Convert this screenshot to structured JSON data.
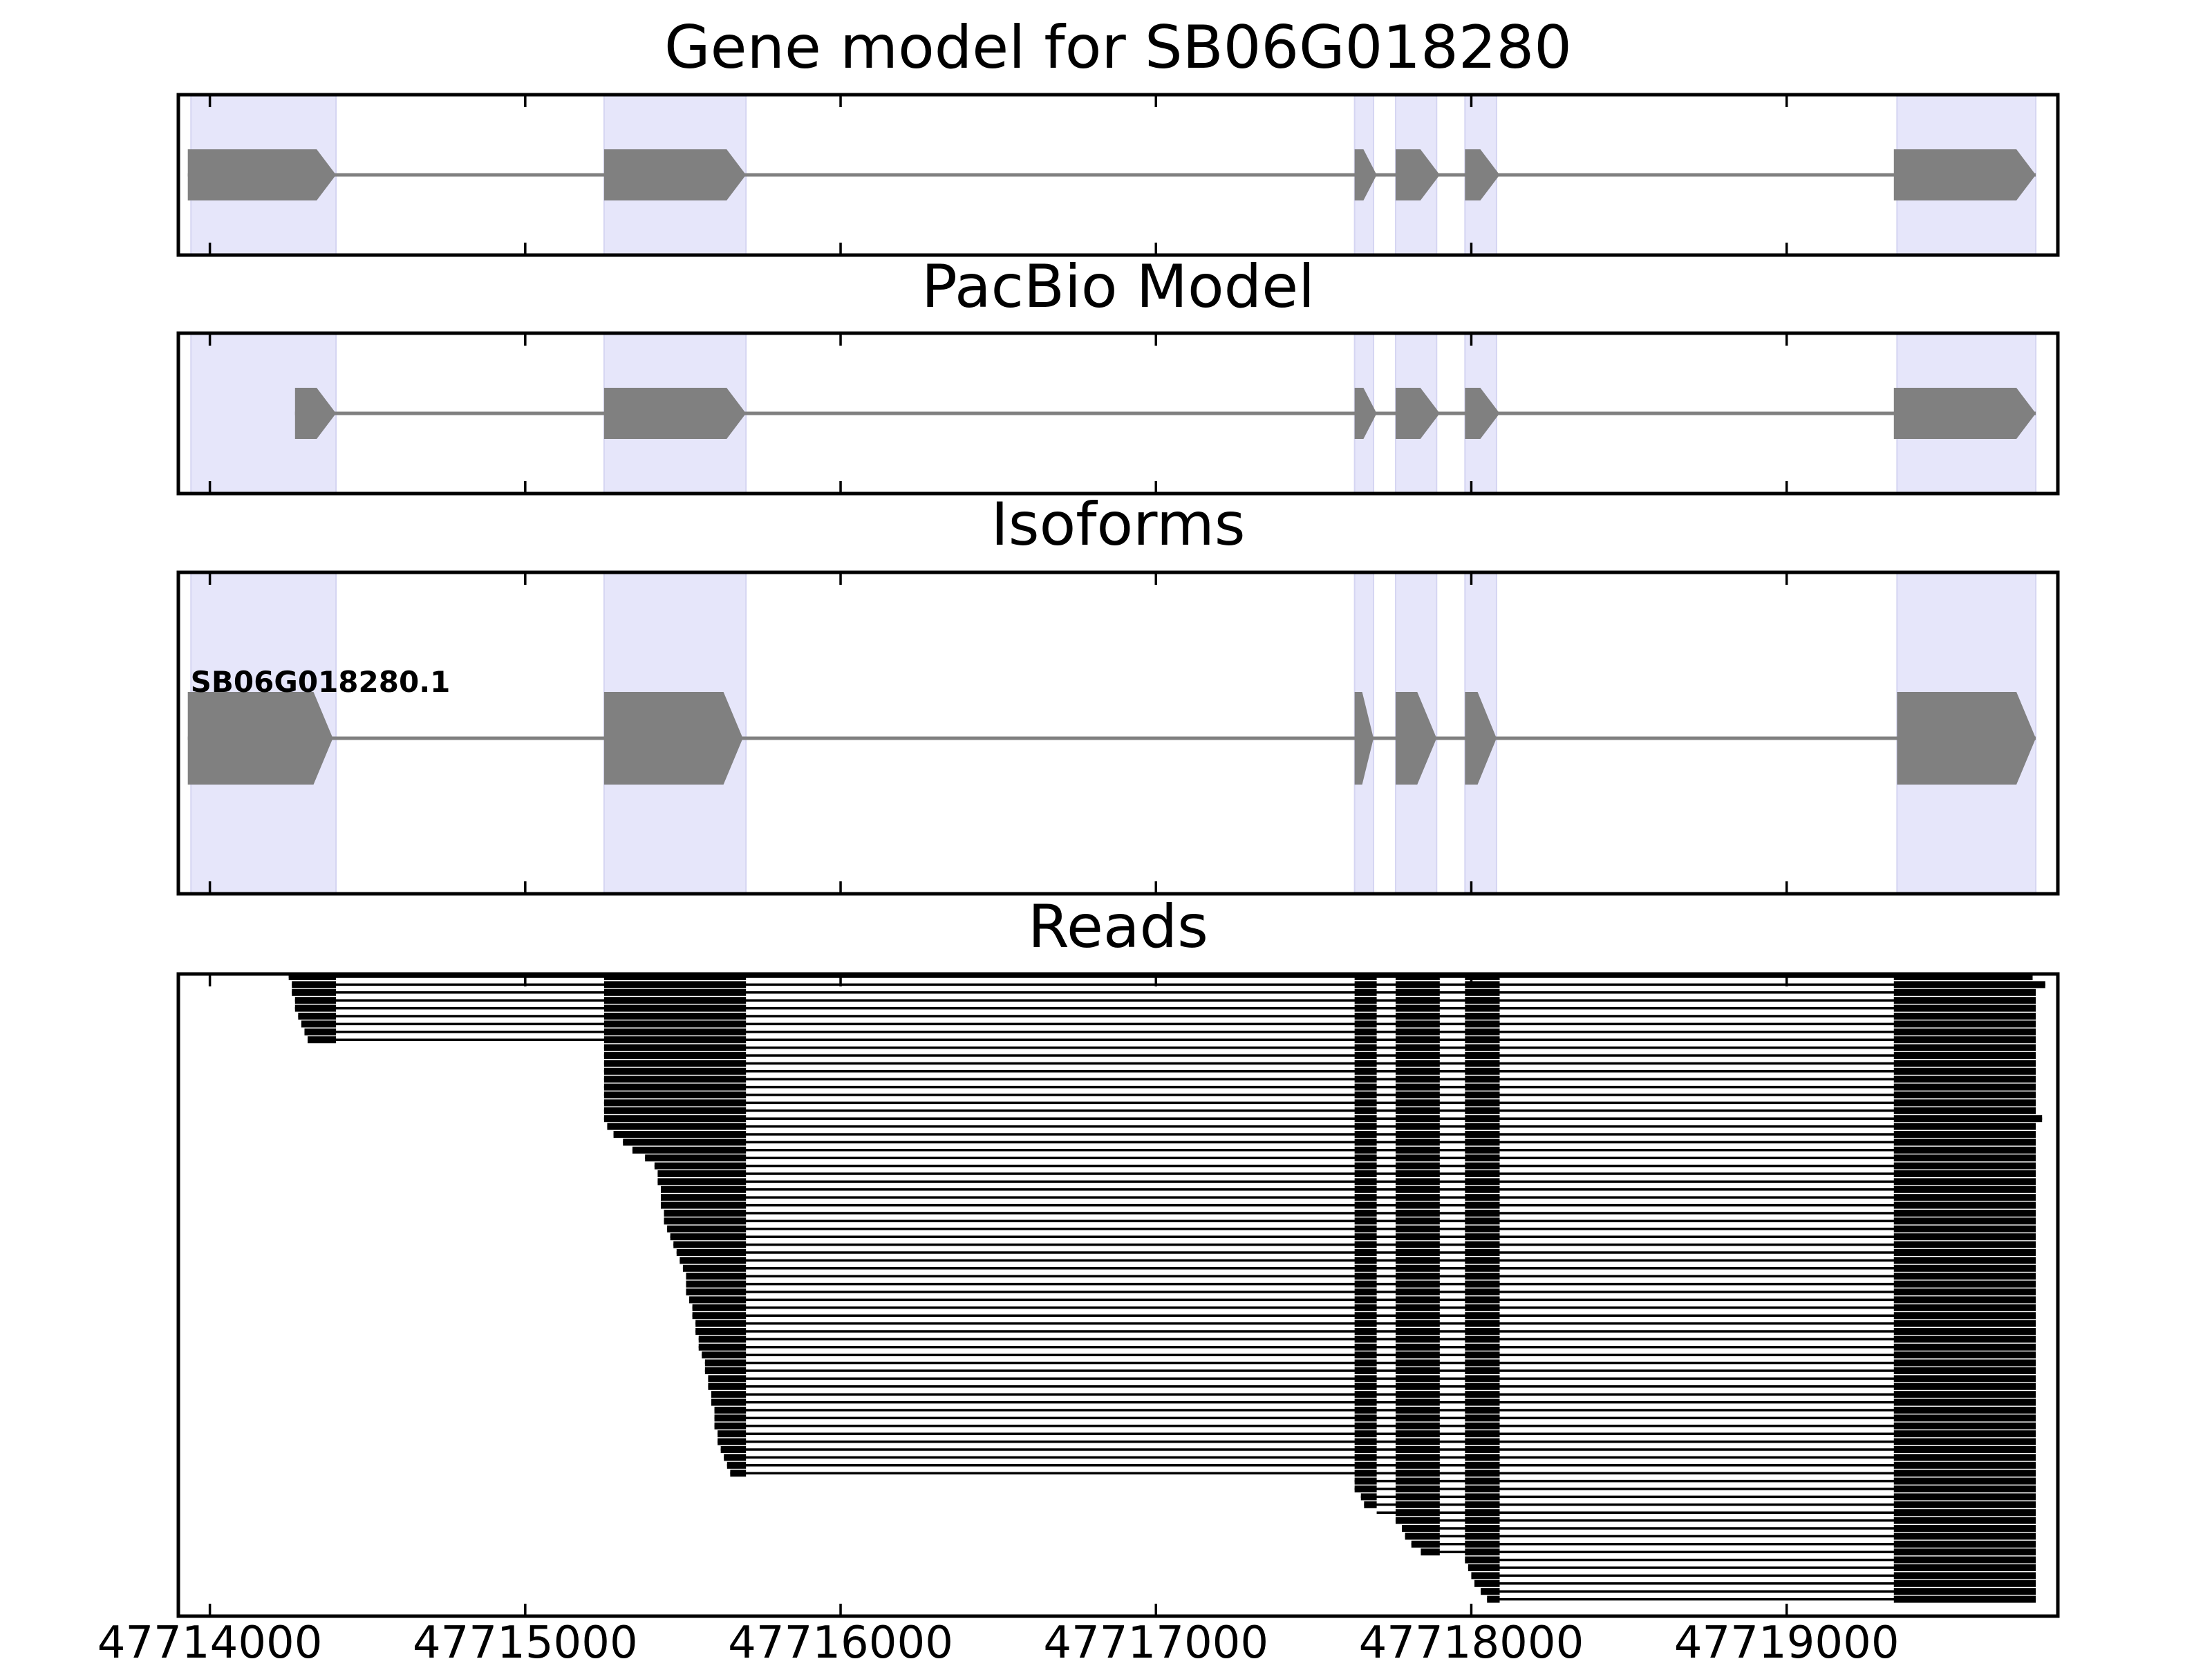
{
  "figure": {
    "x_axis": {
      "range": [
        47713900,
        47719860
      ],
      "ticks": [
        47714000,
        47715000,
        47716000,
        47717000,
        47718000,
        47719000
      ],
      "tick_labels": [
        "47714000",
        "47715000",
        "47716000",
        "47717000",
        "47718000",
        "47719000"
      ]
    },
    "colors": {
      "exon_shading": "#e6e6fa",
      "exon_shading_edge": "#d5d5f2",
      "gene_feature": "#808080",
      "read": "#000000"
    }
  },
  "chart_data": [
    {
      "type": "gene-model",
      "title": "Gene model for SB06G018280",
      "strand": "+",
      "exons": [
        [
          47713930,
          47714400
        ],
        [
          47715250,
          47715700
        ],
        [
          47717630,
          47717700
        ],
        [
          47717760,
          47717900
        ],
        [
          47717980,
          47718090
        ],
        [
          47719340,
          47719790
        ]
      ],
      "shaded_regions": [
        [
          47713940,
          47714400
        ],
        [
          47715250,
          47715700
        ],
        [
          47717630,
          47717690
        ],
        [
          47717760,
          47717890
        ],
        [
          47717980,
          47718080
        ],
        [
          47719350,
          47719790
        ]
      ]
    },
    {
      "type": "gene-model",
      "title": "PacBio Model",
      "strand": "+",
      "exons": [
        [
          47714270,
          47714400
        ],
        [
          47715250,
          47715700
        ],
        [
          47717630,
          47717700
        ],
        [
          47717760,
          47717900
        ],
        [
          47717980,
          47718090
        ],
        [
          47719340,
          47719790
        ]
      ],
      "shaded_regions": [
        [
          47713940,
          47714400
        ],
        [
          47715250,
          47715700
        ],
        [
          47717630,
          47717690
        ],
        [
          47717760,
          47717890
        ],
        [
          47717980,
          47718080
        ],
        [
          47719350,
          47719790
        ]
      ]
    },
    {
      "type": "gene-model",
      "title": "Isoforms",
      "isoforms": [
        {
          "name": "SB06G018280.1",
          "strand": "+",
          "exons": [
            [
              47713930,
              47714390
            ],
            [
              47715250,
              47715690
            ],
            [
              47717630,
              47717690
            ],
            [
              47717760,
              47717890
            ],
            [
              47717980,
              47718080
            ],
            [
              47719350,
              47719790
            ]
          ]
        }
      ],
      "shaded_regions": [
        [
          47713940,
          47714400
        ],
        [
          47715250,
          47715700
        ],
        [
          47717630,
          47717690
        ],
        [
          47717760,
          47717890
        ],
        [
          47717980,
          47718080
        ],
        [
          47719350,
          47719790
        ]
      ]
    },
    {
      "type": "read-alignments",
      "title": "Reads",
      "read_count": 80,
      "intron_junctions": [
        [
          47714410,
          47715240
        ],
        [
          47715710,
          47717620
        ],
        [
          47717700,
          47717760
        ],
        [
          47717900,
          47717980
        ],
        [
          47718090,
          47719340
        ]
      ],
      "exon_blocks": [
        [
          47714410,
          47715240,
          47715710,
          47717620,
          47717700,
          47717760,
          47717900,
          47717980,
          47718090,
          47719340
        ]
      ],
      "read_starts": [
        47714250,
        47714260,
        47714260,
        47714270,
        47714270,
        47714280,
        47714290,
        47714300,
        47714310,
        47715250,
        47715250,
        47715250,
        47715250,
        47715250,
        47715250,
        47715250,
        47715250,
        47715250,
        47715250,
        47715260,
        47715280,
        47715310,
        47715340,
        47715380,
        47715410,
        47715420,
        47715420,
        47715430,
        47715430,
        47715430,
        47715440,
        47715440,
        47715450,
        47715460,
        47715470,
        47715480,
        47715490,
        47715500,
        47715510,
        47715510,
        47715510,
        47715520,
        47715530,
        47715530,
        47715540,
        47715540,
        47715550,
        47715550,
        47715560,
        47715570,
        47715570,
        47715580,
        47715580,
        47715590,
        47715590,
        47715600,
        47715600,
        47715600,
        47715610,
        47715610,
        47715620,
        47715630,
        47715640,
        47715650,
        47717630,
        47717630,
        47717650,
        47717660,
        47717700,
        47717760,
        47717780,
        47717790,
        47717810,
        47717840,
        47717980,
        47717990,
        47718000,
        47718010,
        47718030,
        47718050
      ],
      "read_ends": [
        47719780,
        47719820,
        47719790,
        47719790,
        47719790,
        47719790,
        47719790,
        47719790,
        47719790,
        47719790,
        47719790,
        47719790,
        47719790,
        47719790,
        47719790,
        47719790,
        47719790,
        47719790,
        47719810,
        47719790,
        47719790,
        47719790,
        47719790,
        47719790,
        47719790,
        47719790,
        47719790,
        47719790,
        47719790,
        47719790,
        47719790,
        47719790,
        47719790,
        47719790,
        47719790,
        47719790,
        47719790,
        47719790,
        47719790,
        47719790,
        47719790,
        47719790,
        47719790,
        47719790,
        47719790,
        47719790,
        47719790,
        47719790,
        47719790,
        47719790,
        47719790,
        47719790,
        47719790,
        47719790,
        47719790,
        47719790,
        47719790,
        47719790,
        47719790,
        47719790,
        47719790,
        47719790,
        47719790,
        47719790,
        47719790,
        47719790,
        47719790,
        47719790,
        47719790,
        47719790,
        47719790,
        47719790,
        47719790,
        47719790,
        47719790,
        47719790,
        47719790,
        47719790,
        47719790,
        47719790
      ]
    }
  ]
}
